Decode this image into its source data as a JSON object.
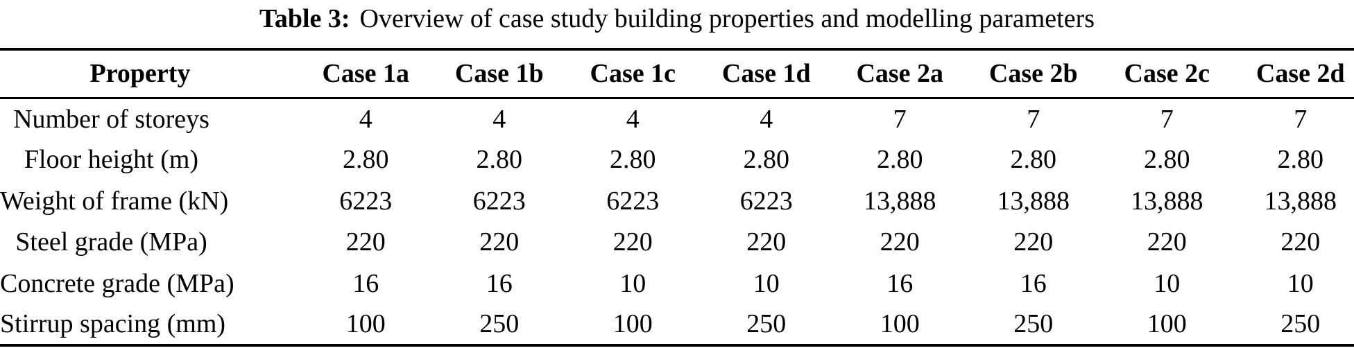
{
  "caption": {
    "label": "Table 3:",
    "text": "Overview of case study building properties and modelling parameters"
  },
  "table": {
    "columns": [
      "Property",
      "Case 1a",
      "Case 1b",
      "Case 1c",
      "Case 1d",
      "Case 2a",
      "Case 2b",
      "Case 2c",
      "Case 2d"
    ],
    "rows": [
      {
        "property": "Number of storeys",
        "values": [
          "4",
          "4",
          "4",
          "4",
          "7",
          "7",
          "7",
          "7"
        ]
      },
      {
        "property": "Floor height (m)",
        "values": [
          "2.80",
          "2.80",
          "2.80",
          "2.80",
          "2.80",
          "2.80",
          "2.80",
          "2.80"
        ]
      },
      {
        "property": "Weight of frame (kN)",
        "values": [
          "6223",
          "6223",
          "6223",
          "6223",
          "13,888",
          "13,888",
          "13,888",
          "13,888"
        ]
      },
      {
        "property": "Steel grade (MPa)",
        "values": [
          "220",
          "220",
          "220",
          "220",
          "220",
          "220",
          "220",
          "220"
        ]
      },
      {
        "property": "Concrete grade (MPa)",
        "values": [
          "16",
          "16",
          "10",
          "10",
          "16",
          "16",
          "10",
          "10"
        ]
      },
      {
        "property": "Stirrup spacing (mm)",
        "values": [
          "100",
          "250",
          "100",
          "250",
          "100",
          "250",
          "100",
          "250"
        ]
      }
    ]
  },
  "chart_data": {
    "type": "table",
    "title": "Table 3: Overview of case study building properties and modelling parameters",
    "columns": [
      "Property",
      "Case 1a",
      "Case 1b",
      "Case 1c",
      "Case 1d",
      "Case 2a",
      "Case 2b",
      "Case 2c",
      "Case 2d"
    ],
    "rows": [
      [
        "Number of storeys",
        "4",
        "4",
        "4",
        "4",
        "7",
        "7",
        "7",
        "7"
      ],
      [
        "Floor height (m)",
        "2.80",
        "2.80",
        "2.80",
        "2.80",
        "2.80",
        "2.80",
        "2.80",
        "2.80"
      ],
      [
        "Weight of frame (kN)",
        "6223",
        "6223",
        "6223",
        "6223",
        "13,888",
        "13,888",
        "13,888",
        "13,888"
      ],
      [
        "Steel grade (MPa)",
        "220",
        "220",
        "220",
        "220",
        "220",
        "220",
        "220",
        "220"
      ],
      [
        "Concrete grade (MPa)",
        "16",
        "16",
        "10",
        "10",
        "16",
        "16",
        "10",
        "10"
      ],
      [
        "Stirrup spacing (mm)",
        "100",
        "250",
        "100",
        "250",
        "100",
        "250",
        "100",
        "250"
      ]
    ]
  },
  "colors": {
    "text": "#000000",
    "background": "#ffffff",
    "rule": "#000000"
  }
}
